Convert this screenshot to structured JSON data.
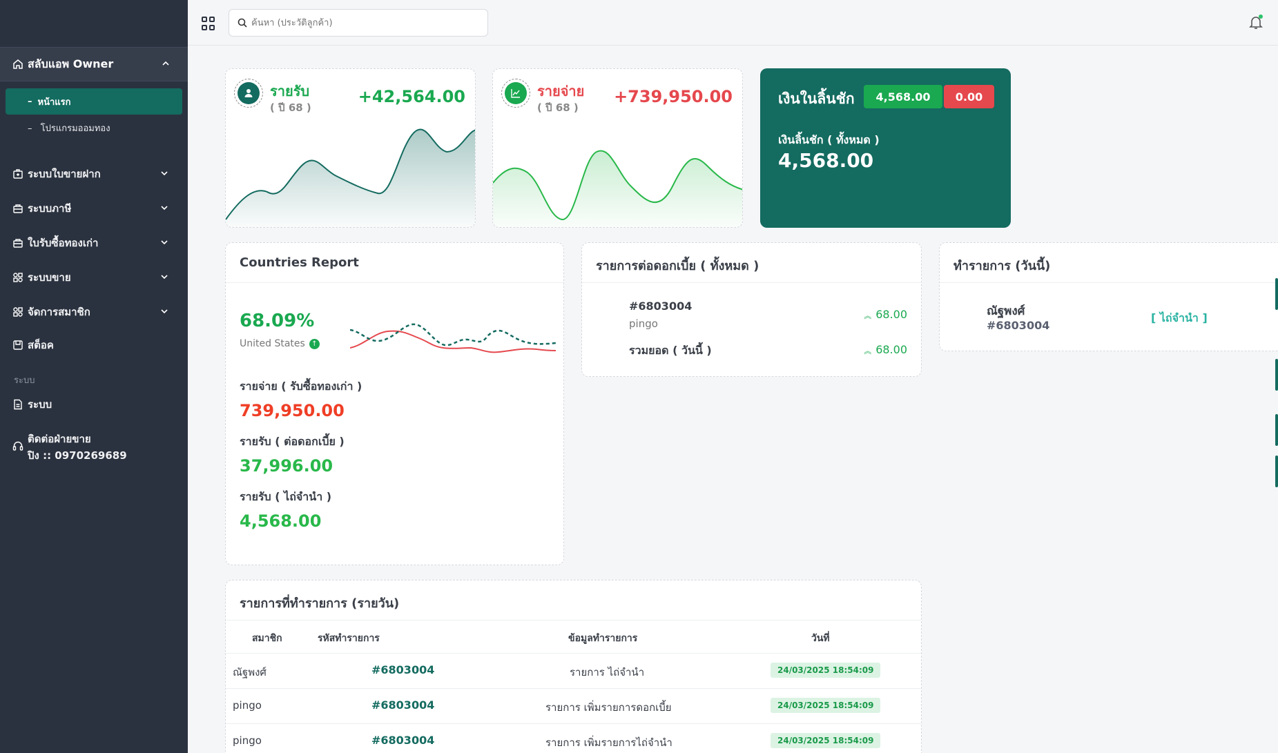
{
  "sidebar": {
    "toggle_label": "สลับแอพ Owner",
    "active_item": "หน้าแรก",
    "sub_item": "โปรแกรมออมทอง",
    "menu": [
      {
        "label": "ระบบใบขายฝาก",
        "icon": "deposit-icon"
      },
      {
        "label": "ระบบภาษี",
        "icon": "tax-icon"
      },
      {
        "label": "ใบรับซื้อทองเก่า",
        "icon": "receipt-icon"
      },
      {
        "label": "ระบบขาย",
        "icon": "sale-icon"
      },
      {
        "label": "จัดการสมาชิก",
        "icon": "member-icon"
      },
      {
        "label": "สต็อค",
        "icon": "stock-icon"
      }
    ],
    "section_label": "ระบบ",
    "system_item": "ระบบ",
    "contact_line1": "ติดต่อฝ่ายขาย",
    "contact_line2": "ปิง  ::  0970269689"
  },
  "topbar": {
    "search_placeholder": "ค้นหา (ประวัติลูกค้า)"
  },
  "income": {
    "label": "รายรับ",
    "sub": "( ปี 68 )",
    "value": "+42,564.00",
    "color": "#1aa850"
  },
  "expense": {
    "label": "รายจ่าย",
    "sub": "( ปี 68 )",
    "value": "+739,950.00",
    "color": "#e5484d"
  },
  "cash": {
    "title": "เงินในลิ้นชัก",
    "badge_green": "4,568.00",
    "badge_red": "0.00",
    "sub": "เงินลิ้นชัก ( ทั้งหมด )",
    "value": "4,568.00"
  },
  "report": {
    "title": "Countries Report",
    "percent": "68.09%",
    "country": "United States",
    "items": [
      {
        "label": "รายจ่าย ( รับซื้อทองเก่า )",
        "value": "739,950.00",
        "color": "#ef3e26"
      },
      {
        "label": "รายรับ ( ต่อดอกเบี้ย )",
        "value": "37,996.00",
        "color": "#29b84a"
      },
      {
        "label": "รายรับ ( ไถ่จำนำ )",
        "value": "4,568.00",
        "color": "#29b84a"
      }
    ]
  },
  "interest": {
    "title": "รายการต่อดอกเบี้ย ( ทั้งหมด )",
    "code": "#6803004",
    "name": "pingo",
    "amount": "68.00",
    "total_label": "รวมยอด   ( วันนี้ )",
    "total_amount": "68.00"
  },
  "today": {
    "title": "ทำรายการ (วันนี้)",
    "name": "ณัฐพงศ์",
    "code": "#6803004",
    "action": "[ ไถ่จำนำ ]"
  },
  "daily": {
    "title": "รายการที่ทำรายการ (รายวัน)",
    "columns": [
      "สมาชิก",
      "รหัสทำรายการ",
      "ข้อมูลทำรายการ",
      "วันที่"
    ],
    "rows": [
      {
        "member": "ณัฐพงศ์",
        "code": "#6803004",
        "info": "รายการ ไถ่จำนำ",
        "date": "24/03/2025 18:54:09"
      },
      {
        "member": "pingo",
        "code": "#6803004",
        "info": "รายการ เพิ่มรายการดอกเบี้ย",
        "date": "24/03/2025 18:54:09"
      },
      {
        "member": "pingo",
        "code": "#6803004",
        "info": "รายการ เพิ่มรายการไถ่จำนำ",
        "date": "24/03/2025 18:54:09"
      }
    ]
  }
}
